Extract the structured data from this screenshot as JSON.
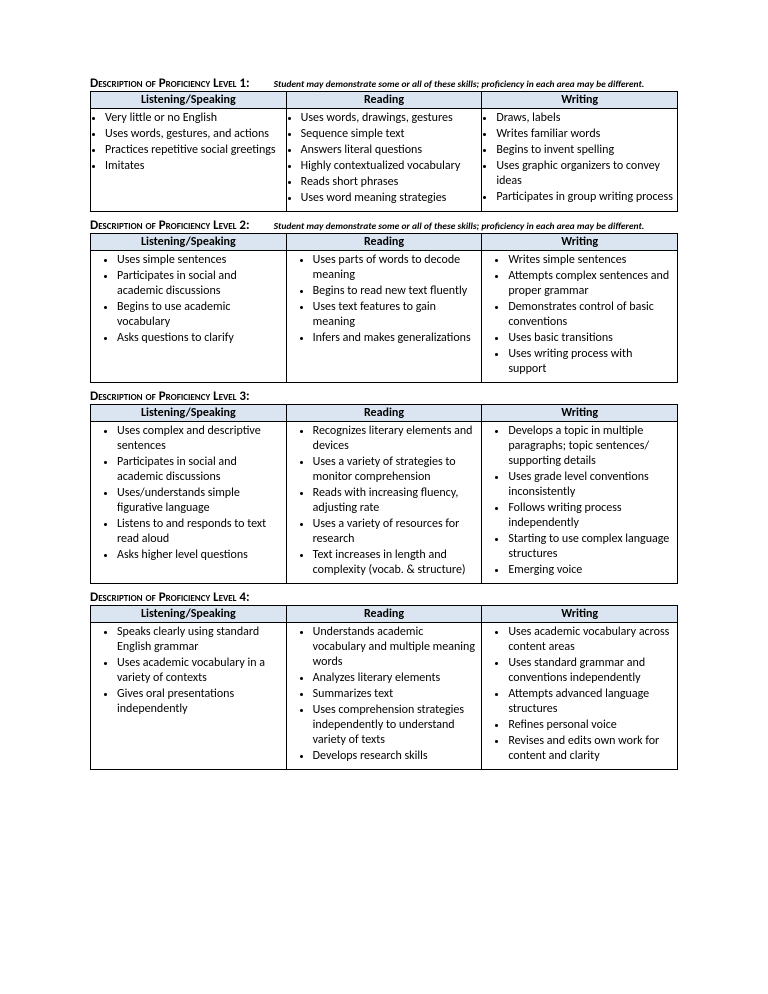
{
  "levels": [
    {
      "title": "Description of Proficiency Level 1:",
      "note": "Student may demonstrate some or all of these skills; proficiency in each area may be different.",
      "columns": [
        "Listening/Speaking",
        "Reading",
        "Writing"
      ],
      "listStyle": "tight",
      "cells": [
        [
          "Very little or no English",
          "Uses words, gestures, and actions",
          "Practices repetitive social greetings",
          "Imitates"
        ],
        [
          "Uses words, drawings, gestures",
          "Sequence simple text",
          "Answers literal questions",
          "Highly contextualized vocabulary",
          "Reads short phrases",
          "Uses word meaning strategies"
        ],
        [
          "Draws, labels",
          "Writes familiar words",
          "Begins to invent spelling",
          "Uses graphic organizers to convey ideas",
          "Participates in group writing process"
        ]
      ]
    },
    {
      "title": "Description of Proficiency Level 2:",
      "note": "Student may demonstrate some or all of these skills; proficiency in each area may be different.",
      "columns": [
        "Listening/Speaking",
        "Reading",
        "Writing"
      ],
      "listStyle": "wide",
      "cells": [
        [
          "Uses simple sentences",
          "Participates in social and academic discussions",
          "Begins to use academic vocabulary",
          "Asks questions to clarify"
        ],
        [
          "Uses parts of words to decode meaning",
          "Begins to read new text fluently",
          "Uses text features to gain meaning",
          "Infers and makes generalizations"
        ],
        [
          "Writes simple sentences",
          "Attempts complex sentences and proper grammar",
          "Demonstrates control of basic conventions",
          "Uses basic transitions",
          "Uses writing process with support"
        ]
      ]
    },
    {
      "title": "Description of Proficiency Level 3:",
      "note": "",
      "columns": [
        "Listening/Speaking",
        "Reading",
        "Writing"
      ],
      "listStyle": "wide",
      "cells": [
        [
          "Uses complex and descriptive sentences",
          "Participates in social and academic discussions",
          "Uses/understands simple figurative language",
          "Listens to and responds to text read aloud",
          "Asks higher level questions"
        ],
        [
          "Recognizes literary elements and devices",
          "Uses a variety of strategies to monitor comprehension",
          "Reads with increasing fluency, adjusting rate",
          "Uses a variety of resources for research",
          "Text increases in length and complexity (vocab. & structure)"
        ],
        [
          "Develops a topic in multiple paragraphs; topic sentences/ supporting details",
          "Uses grade level conventions inconsistently",
          "Follows writing process independently",
          "Starting to use complex language structures",
          "Emerging voice"
        ]
      ]
    },
    {
      "title": "Description of Proficiency Level 4:",
      "note": "",
      "columns": [
        "Listening/Speaking",
        "Reading",
        "Writing"
      ],
      "listStyle": "wide",
      "cells": [
        [
          "Speaks clearly using standard English grammar",
          "Uses academic vocabulary in a variety of contexts",
          "Gives oral presentations independently"
        ],
        [
          "Understands academic vocabulary and multiple meaning words",
          "Analyzes literary elements",
          "Summarizes text",
          "Uses comprehension strategies independently to understand variety of texts",
          "Develops research skills"
        ],
        [
          "Uses academic vocabulary across content areas",
          "Uses standard grammar and conventions independently",
          " Attempts advanced language structures",
          "Refines personal voice",
          "Revises and edits own work for content and clarity"
        ]
      ]
    }
  ]
}
